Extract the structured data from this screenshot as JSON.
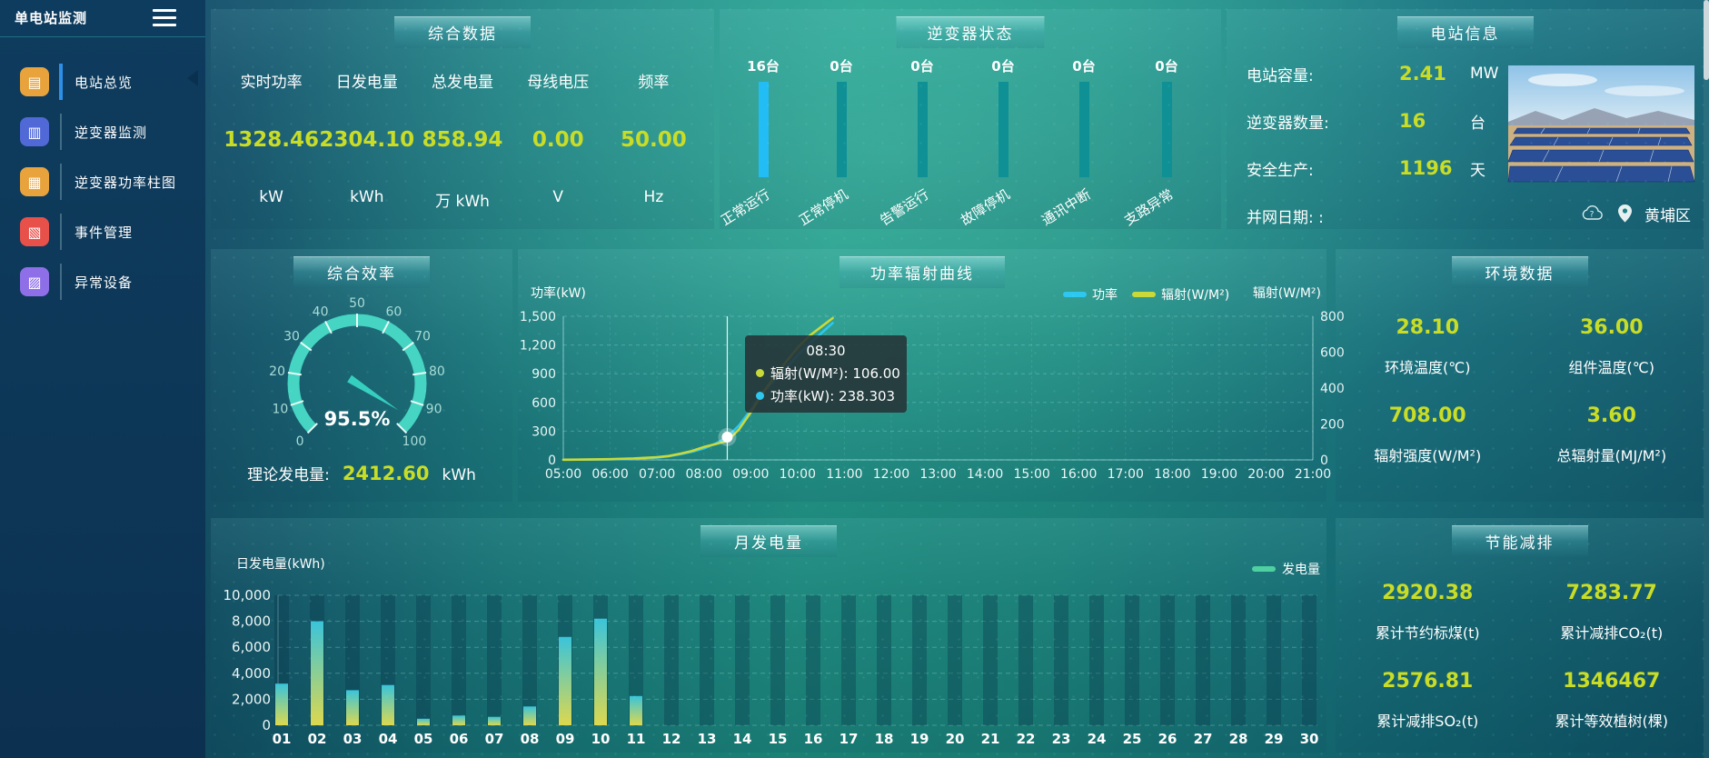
{
  "colors": {
    "value_yellow": "#c9dc26",
    "power_cyan": "#2ec7f0",
    "radiation_yellow": "#c9d93a",
    "bar_teal": "#0e9094",
    "bar_active_cyan": "#22bdf5",
    "gauge_teal": "#45d5c2",
    "legend_green": "#4fd0a0",
    "active_accent_blue": "#2e8fe8"
  },
  "sidebar": {
    "title": "单电站监测",
    "items": [
      {
        "id": "overview",
        "label": "电站总览",
        "icon": "overview-icon",
        "glyph": "▤",
        "color": "#e8a33d",
        "active": true
      },
      {
        "id": "inverter-monitor",
        "label": "逆变器监测",
        "icon": "inverter-monitor-icon",
        "glyph": "▥",
        "color": "#5069d6",
        "active": false
      },
      {
        "id": "inverter-power",
        "label": "逆变器功率柱图",
        "icon": "power-bars-icon",
        "glyph": "▦",
        "color": "#e8a33d",
        "active": false
      },
      {
        "id": "events",
        "label": "事件管理",
        "icon": "event-management-icon",
        "glyph": "▧",
        "color": "#e8504a",
        "active": false
      },
      {
        "id": "abnormal",
        "label": "异常设备",
        "icon": "abnormal-device-icon",
        "glyph": "▨",
        "color": "#8f6fe8",
        "active": false
      }
    ]
  },
  "overview": {
    "title": "综合数据",
    "metrics": [
      {
        "label": "实时功率",
        "value": "1328.46",
        "unit": "kW"
      },
      {
        "label": "日发电量",
        "value": "2304.10",
        "unit": "kWh"
      },
      {
        "label": "总发电量",
        "value": "858.94",
        "unit": "万 kWh"
      },
      {
        "label": "母线电压",
        "value": "0.00",
        "unit": "V"
      },
      {
        "label": "频率",
        "value": "50.00",
        "unit": "Hz"
      }
    ]
  },
  "inverter": {
    "title": "逆变器状态"
  },
  "station": {
    "title": "电站信息",
    "rows": [
      {
        "label": "电站容量:",
        "value": "2.41",
        "unit": "MW"
      },
      {
        "label": "逆变器数量:",
        "value": "16",
        "unit": "台"
      },
      {
        "label": "安全生产:",
        "value": "1196",
        "unit": "天"
      },
      {
        "label": "并网日期:  :",
        "value": "",
        "unit": ""
      }
    ],
    "weather_icon": "cloud-question-icon",
    "location_icon": "map-pin-icon",
    "location": "黄埔区"
  },
  "efficiency": {
    "title": "综合效率",
    "theory_label": "理论发电量:",
    "theory_value": "2412.60",
    "theory_unit": "kWh"
  },
  "line": {
    "title": "功率辐射曲线",
    "left_axis_name": "功率(kW)",
    "right_axis_name": "辐射(W/M²)",
    "legend": [
      "功率",
      "辐射(W/M²)"
    ],
    "tooltip": {
      "time": "08:30",
      "lines": [
        {
          "color": "#c9d93a",
          "text": "辐射(W/M²): 106.00"
        },
        {
          "color": "#2ec7f0",
          "text": "功率(kW): 238.303"
        }
      ]
    }
  },
  "env": {
    "title": "环境数据",
    "items": [
      {
        "value": "28.10",
        "label": "环境温度(℃)"
      },
      {
        "value": "36.00",
        "label": "组件温度(℃)"
      },
      {
        "value": "708.00",
        "label": "辐射强度(W/M²)"
      },
      {
        "value": "3.60",
        "label": "总辐射量(MJ/M²)"
      }
    ]
  },
  "month": {
    "title": "月发电量",
    "ylabel": "日发电量(kWh)",
    "legend": "发电量"
  },
  "saving": {
    "title": "节能减排",
    "items": [
      {
        "value": "2920.38",
        "label": "累计节约标煤(t)"
      },
      {
        "value": "7283.77",
        "label": "累计减排CO₂(t)"
      },
      {
        "value": "2576.81",
        "label": "累计减排SO₂(t)"
      },
      {
        "value": "1346467",
        "label": "累计等效植树(棵)"
      }
    ]
  },
  "chart_data": [
    {
      "id": "inverter_status",
      "type": "bar",
      "title": "逆变器状态",
      "categories": [
        "正常运行",
        "正常停机",
        "告警运行",
        "故障停机",
        "通讯中断",
        "支路异常"
      ],
      "values": [
        16,
        0,
        0,
        0,
        0,
        0
      ],
      "value_suffix": "台",
      "bar_colors": [
        "#22bdf5",
        "#0e9094",
        "#0e9094",
        "#0e9094",
        "#0e9094",
        "#0e9094"
      ],
      "centers": [
        48,
        134,
        223,
        312,
        401,
        492
      ]
    },
    {
      "id": "efficiency_gauge",
      "type": "gauge",
      "value": 95.5,
      "min": 0,
      "max": 100,
      "tick_step": 10,
      "label": "95.5%",
      "color": "#45d5c2"
    },
    {
      "id": "power_radiation",
      "type": "line",
      "title": "功率辐射曲线",
      "x_axis": {
        "start": 5,
        "end": 21,
        "labels": [
          "05:00",
          "06:00",
          "07:00",
          "08:00",
          "09:00",
          "10:00",
          "11:00",
          "12:00",
          "13:00",
          "14:00",
          "15:00",
          "16:00",
          "17:00",
          "18:00",
          "19:00",
          "20:00",
          "21:00"
        ]
      },
      "left_axis": {
        "name": "功率(kW)",
        "max": 1500,
        "ticks": [
          0,
          300,
          600,
          900,
          1200,
          1500
        ],
        "tick_labels": [
          "0",
          "300",
          "600",
          "900",
          "1,200",
          "1,500"
        ]
      },
      "right_axis": {
        "name": "辐射(W/M²)",
        "max": 800,
        "ticks": [
          0,
          200,
          400,
          600,
          800
        ],
        "tick_labels": [
          "0",
          "200",
          "400",
          "600",
          "800"
        ]
      },
      "series": [
        {
          "name": "功率",
          "color": "#2ec7f0",
          "axis": "left",
          "points": [
            [
              5,
              2
            ],
            [
              5.5,
              3
            ],
            [
              6,
              6
            ],
            [
              6.5,
              12
            ],
            [
              7,
              25
            ],
            [
              7.25,
              38
            ],
            [
              7.5,
              60
            ],
            [
              7.75,
              85
            ],
            [
              8,
              120
            ],
            [
              8.25,
              170
            ],
            [
              8.5,
              238
            ],
            [
              8.75,
              360
            ],
            [
              9,
              520
            ],
            [
              9.25,
              700
            ],
            [
              9.5,
              830
            ],
            [
              9.75,
              950
            ],
            [
              10,
              1090
            ],
            [
              10.25,
              1210
            ],
            [
              10.5,
              1320
            ],
            [
              10.75,
              1430
            ]
          ]
        },
        {
          "name": "辐射(W/M²)",
          "color": "#c9d93a",
          "axis": "right",
          "points": [
            [
              5,
              1
            ],
            [
              5.5,
              2
            ],
            [
              6,
              4
            ],
            [
              6.5,
              8
            ],
            [
              7,
              15
            ],
            [
              7.25,
              22
            ],
            [
              7.5,
              35
            ],
            [
              7.75,
              50
            ],
            [
              8,
              72
            ],
            [
              8.25,
              88
            ],
            [
              8.5,
              106
            ],
            [
              8.75,
              170
            ],
            [
              9,
              265
            ],
            [
              9.25,
              370
            ],
            [
              9.5,
              460
            ],
            [
              9.75,
              545
            ],
            [
              10,
              625
            ],
            [
              10.25,
              690
            ],
            [
              10.5,
              740
            ],
            [
              10.75,
              790
            ]
          ]
        }
      ],
      "marker": {
        "x": 8.5,
        "power": 238.303,
        "radiation": 106.0
      }
    },
    {
      "id": "monthly_generation",
      "type": "bar",
      "title": "月发电量",
      "ylabel": "日发电量(kWh)",
      "legend": "发电量",
      "categories": [
        "01",
        "02",
        "03",
        "04",
        "05",
        "06",
        "07",
        "08",
        "09",
        "10",
        "11",
        "12",
        "13",
        "14",
        "15",
        "16",
        "17",
        "18",
        "19",
        "20",
        "21",
        "22",
        "23",
        "24",
        "25",
        "26",
        "27",
        "28",
        "29",
        "30"
      ],
      "values": [
        3200,
        8000,
        2700,
        3100,
        500,
        750,
        650,
        1450,
        6800,
        8200,
        2250,
        0,
        0,
        0,
        0,
        0,
        0,
        0,
        0,
        0,
        0,
        0,
        0,
        0,
        0,
        0,
        0,
        0,
        0,
        0
      ],
      "ymax": 10000,
      "y_ticks": [
        0,
        2000,
        4000,
        6000,
        8000,
        10000
      ],
      "y_tick_labels": [
        "0",
        "2,000",
        "4,000",
        "6,000",
        "8,000",
        "10,000"
      ],
      "bar_gradient": [
        "#ddd84e",
        "#3ac4da"
      ]
    }
  ]
}
